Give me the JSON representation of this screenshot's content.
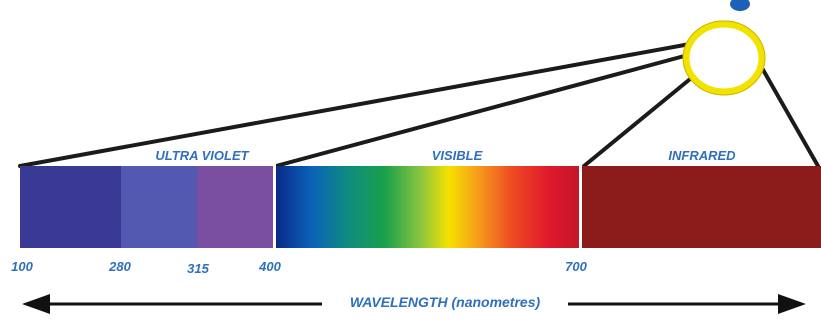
{
  "bands": {
    "ultraviolet": {
      "label": "ULTRA VIOLET",
      "color_a": "#3a3a96",
      "color_b": "#5358b0",
      "color_c": "#7a4fa2"
    },
    "visible": {
      "label": "VISIBLE"
    },
    "infrared": {
      "label": "INFRARED",
      "color": "#8b1a1a"
    }
  },
  "ticks": [
    {
      "id": "100",
      "label": "100"
    },
    {
      "id": "280",
      "label": "280"
    },
    {
      "id": "315",
      "label": "315"
    },
    {
      "id": "400",
      "label": "400"
    },
    {
      "id": "700",
      "label": "700"
    }
  ],
  "axis": {
    "label": "WAVELENGTH (nanometres)"
  },
  "sun": {
    "ring_color": "#f2e200",
    "outline_color": "#c8b800"
  },
  "colors": {
    "text": "#2f6fbd",
    "beam": "#1b1b1b",
    "arrow": "#111111"
  }
}
